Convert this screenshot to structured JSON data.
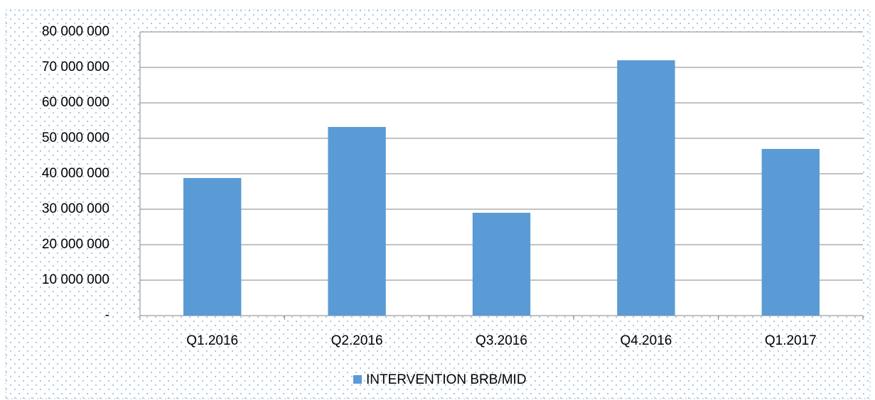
{
  "chart_data": {
    "type": "bar",
    "categories": [
      "Q1.2016",
      "Q2.2016",
      "Q3.2016",
      "Q4.2016",
      "Q1.2017"
    ],
    "series": [
      {
        "name": "INTERVENTION BRB/MID",
        "color": "#5b9bd5",
        "values": [
          38800000,
          53200000,
          29000000,
          72000000,
          47000000
        ]
      }
    ],
    "ylim": [
      0,
      80000000
    ],
    "yticks": [
      {
        "value": 0,
        "label": "-"
      },
      {
        "value": 10000000,
        "label": "10 000 000"
      },
      {
        "value": 20000000,
        "label": "20 000 000"
      },
      {
        "value": 30000000,
        "label": "30 000 000"
      },
      {
        "value": 40000000,
        "label": "40 000 000"
      },
      {
        "value": 50000000,
        "label": "50 000 000"
      },
      {
        "value": 60000000,
        "label": "60 000 000"
      },
      {
        "value": 70000000,
        "label": "70 000 000"
      },
      {
        "value": 80000000,
        "label": "80 000 000"
      }
    ],
    "grid": true,
    "legend": "bottom"
  }
}
